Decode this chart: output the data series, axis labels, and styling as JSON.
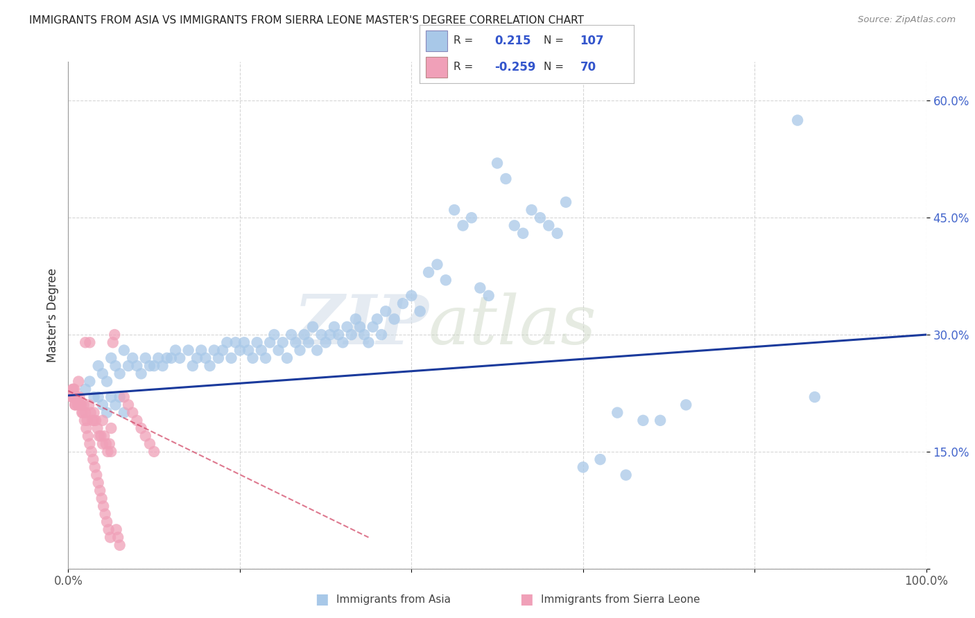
{
  "title": "IMMIGRANTS FROM ASIA VS IMMIGRANTS FROM SIERRA LEONE MASTER'S DEGREE CORRELATION CHART",
  "source": "Source: ZipAtlas.com",
  "ylabel": "Master's Degree",
  "legend_R_asia": "0.215",
  "legend_N_asia": "107",
  "legend_R_sierra": "-0.259",
  "legend_N_sierra": "70",
  "color_asia": "#a8c8e8",
  "color_sierra": "#f0a0b8",
  "line_color_asia": "#1a3a9c",
  "line_color_sierra": "#d04060",
  "background_color": "#ffffff",
  "grid_color": "#cccccc",
  "watermark_zip": "ZIP",
  "watermark_atlas": "atlas",
  "xlim": [
    0.0,
    1.0
  ],
  "ylim": [
    0.0,
    0.65
  ],
  "asia_line_x0": 0.0,
  "asia_line_y0": 0.222,
  "asia_line_x1": 1.0,
  "asia_line_y1": 0.3,
  "sierra_line_x0": 0.0,
  "sierra_line_y0": 0.228,
  "sierra_line_x1": 0.35,
  "sierra_line_y1": 0.04,
  "asia_scatter": {
    "x": [
      0.02,
      0.025,
      0.03,
      0.035,
      0.04,
      0.045,
      0.05,
      0.055,
      0.06,
      0.065,
      0.07,
      0.075,
      0.08,
      0.085,
      0.09,
      0.095,
      0.1,
      0.105,
      0.11,
      0.115,
      0.12,
      0.125,
      0.13,
      0.14,
      0.145,
      0.15,
      0.155,
      0.16,
      0.165,
      0.17,
      0.175,
      0.18,
      0.185,
      0.19,
      0.195,
      0.2,
      0.205,
      0.21,
      0.215,
      0.22,
      0.225,
      0.23,
      0.235,
      0.24,
      0.245,
      0.25,
      0.255,
      0.26,
      0.265,
      0.27,
      0.275,
      0.28,
      0.285,
      0.29,
      0.295,
      0.3,
      0.305,
      0.31,
      0.315,
      0.32,
      0.325,
      0.33,
      0.335,
      0.34,
      0.345,
      0.35,
      0.355,
      0.36,
      0.365,
      0.37,
      0.38,
      0.39,
      0.4,
      0.41,
      0.42,
      0.43,
      0.44,
      0.45,
      0.46,
      0.47,
      0.48,
      0.49,
      0.5,
      0.51,
      0.52,
      0.53,
      0.54,
      0.55,
      0.56,
      0.57,
      0.58,
      0.6,
      0.62,
      0.64,
      0.65,
      0.67,
      0.69,
      0.72,
      0.85,
      0.87,
      0.035,
      0.04,
      0.045,
      0.05,
      0.055,
      0.06,
      0.065
    ],
    "y": [
      0.23,
      0.24,
      0.22,
      0.26,
      0.25,
      0.24,
      0.27,
      0.26,
      0.25,
      0.28,
      0.26,
      0.27,
      0.26,
      0.25,
      0.27,
      0.26,
      0.26,
      0.27,
      0.26,
      0.27,
      0.27,
      0.28,
      0.27,
      0.28,
      0.26,
      0.27,
      0.28,
      0.27,
      0.26,
      0.28,
      0.27,
      0.28,
      0.29,
      0.27,
      0.29,
      0.28,
      0.29,
      0.28,
      0.27,
      0.29,
      0.28,
      0.27,
      0.29,
      0.3,
      0.28,
      0.29,
      0.27,
      0.3,
      0.29,
      0.28,
      0.3,
      0.29,
      0.31,
      0.28,
      0.3,
      0.29,
      0.3,
      0.31,
      0.3,
      0.29,
      0.31,
      0.3,
      0.32,
      0.31,
      0.3,
      0.29,
      0.31,
      0.32,
      0.3,
      0.33,
      0.32,
      0.34,
      0.35,
      0.33,
      0.38,
      0.39,
      0.37,
      0.46,
      0.44,
      0.45,
      0.36,
      0.35,
      0.52,
      0.5,
      0.44,
      0.43,
      0.46,
      0.45,
      0.44,
      0.43,
      0.47,
      0.13,
      0.14,
      0.2,
      0.12,
      0.19,
      0.19,
      0.21,
      0.575,
      0.22,
      0.22,
      0.21,
      0.2,
      0.22,
      0.21,
      0.22,
      0.2
    ]
  },
  "sierra_scatter": {
    "x": [
      0.004,
      0.006,
      0.008,
      0.01,
      0.012,
      0.014,
      0.016,
      0.018,
      0.02,
      0.022,
      0.024,
      0.026,
      0.028,
      0.03,
      0.032,
      0.034,
      0.036,
      0.038,
      0.04,
      0.042,
      0.044,
      0.046,
      0.048,
      0.05,
      0.005,
      0.007,
      0.009,
      0.011,
      0.013,
      0.015,
      0.017,
      0.019,
      0.021,
      0.023,
      0.025,
      0.027,
      0.029,
      0.031,
      0.033,
      0.035,
      0.037,
      0.039,
      0.041,
      0.043,
      0.045,
      0.047,
      0.049,
      0.052,
      0.054,
      0.056,
      0.058,
      0.06,
      0.065,
      0.07,
      0.075,
      0.08,
      0.085,
      0.09,
      0.095,
      0.1,
      0.005,
      0.006,
      0.008,
      0.01,
      0.012,
      0.02,
      0.025,
      0.03,
      0.04,
      0.05
    ],
    "y": [
      0.22,
      0.23,
      0.21,
      0.22,
      0.24,
      0.21,
      0.2,
      0.21,
      0.2,
      0.19,
      0.21,
      0.2,
      0.19,
      0.19,
      0.19,
      0.18,
      0.17,
      0.17,
      0.16,
      0.17,
      0.16,
      0.15,
      0.16,
      0.15,
      0.22,
      0.23,
      0.22,
      0.21,
      0.22,
      0.21,
      0.2,
      0.19,
      0.18,
      0.17,
      0.16,
      0.15,
      0.14,
      0.13,
      0.12,
      0.11,
      0.1,
      0.09,
      0.08,
      0.07,
      0.06,
      0.05,
      0.04,
      0.29,
      0.3,
      0.05,
      0.04,
      0.03,
      0.22,
      0.21,
      0.2,
      0.19,
      0.18,
      0.17,
      0.16,
      0.15,
      0.23,
      0.22,
      0.21,
      0.22,
      0.21,
      0.29,
      0.29,
      0.2,
      0.19,
      0.18
    ]
  }
}
